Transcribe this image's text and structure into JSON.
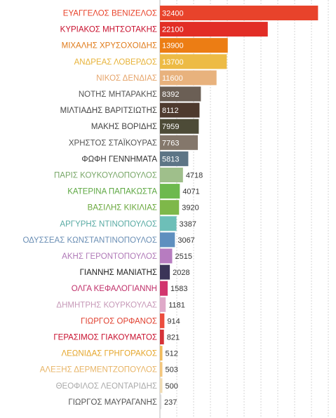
{
  "chart_data": {
    "type": "bar",
    "orientation": "horizontal",
    "title": "",
    "xlabel": "",
    "ylabel": "",
    "grid": true,
    "legend": "none",
    "xlim": [
      0,
      34500
    ],
    "categories": [
      "ΕΥΑΓΓΕΛΟΣ ΒΕΝΙΖΕΛΟΣ",
      "ΚΥΡΙΑΚΟΣ ΜΗΤΣΟΤΑΚΗΣ",
      "ΜΙΧΑΛΗΣ ΧΡΥΣΟΧΟΙΔΗΣ",
      "ΑΝΔΡΕΑΣ ΛΟΒΕΡΔΟΣ",
      "ΝΙΚΟΣ ΔΕΝΔΙΑΣ",
      "ΝΟΤΗΣ ΜΗΤΑΡΑΚΗΣ",
      "ΜΙΛΤΙΑΔΗΣ ΒΑΡΙΤΣΙΩΤΗΣ",
      "ΜΑΚΗΣ ΒΟΡΙΔΗΣ",
      "ΧΡΗΣΤΟΣ ΣΤΑΪΚΟΥΡΑΣ",
      "ΦΩΦΗ ΓΕΝΝΗΜΑΤΑ",
      "ΠΑΡΙΣ ΚΟΥΚΟΥΛΟΠΟΥΛΟΣ",
      "ΚΑΤΕΡΙΝΑ ΠΑΠΑΚΩΣΤΑ",
      "ΒΑΣΙΛΗΣ ΚΙΚΙΛΙΑΣ",
      "ΑΡΓΥΡΗΣ ΝΤΙΝΟΠΟΥΛΟΣ",
      "ΟΔΥΣΣΕΑΣ ΚΩΝΣΤΑΝΤΙΝΟΠΟΥΛΟΣ",
      "ΑΚΗΣ ΓΕΡΟΝΤΟΠΟΥΛΟΣ",
      "ΓΙΑΝΝΗΣ ΜΑΝΙΑΤΗΣ",
      "ΟΛΓΑ ΚΕΦΑΛΟΓΙΑΝΝΗ",
      "ΔΗΜΗΤΡΗΣ ΚΟΥΡΚΟΥΛΑΣ",
      "ΓΙΩΡΓΟΣ ΟΡΦΑΝΟΣ",
      "ΓΕΡΑΣΙΜΟΣ ΓΙΑΚΟΥΜΑΤΟΣ",
      "ΛΕΩΝΙΔΑΣ ΓΡΗΓΟΡΑΚΟΣ",
      "ΑΛΕΞΗΣ ΔΕΡΜΕΝΤΖΟΠΟΥΛΟΣ",
      "ΘΕΟΦΙΛΟΣ ΛΕΟΝΤΑΡΙΔΗΣ",
      "ΓΙΩΡΓΟΣ ΜΑΥΡΑΓΑΝΗΣ"
    ],
    "values": [
      32400,
      22100,
      13900,
      13700,
      11600,
      8392,
      8112,
      7959,
      7763,
      5813,
      4718,
      4071,
      3920,
      3387,
      3067,
      2515,
      2028,
      1583,
      1181,
      914,
      821,
      512,
      503,
      500,
      237
    ],
    "value_labels": [
      "32400",
      "22100",
      "13900",
      "13700",
      "11600",
      "8392",
      "8112",
      "7959",
      "7763",
      "5813",
      "4718",
      "4071",
      "3920",
      "3387",
      "3067",
      "2515",
      "2028",
      "1583",
      "1181",
      "914",
      "821",
      "512",
      "503",
      "500",
      "237"
    ],
    "colors": [
      "#e8432b",
      "#e22d26",
      "#ec7d14",
      "#edbb45",
      "#e8b27d",
      "#6b5f55",
      "#4e3a2e",
      "#4d4b37",
      "#84776b",
      "#5d7586",
      "#9fbf8b",
      "#6db94e",
      "#7eb849",
      "#6dbfb8",
      "#5e8fbf",
      "#b77cc0",
      "#3b3558",
      "#d2356e",
      "#dfa9c9",
      "#ec4d3e",
      "#d63237",
      "#f1bb5b",
      "#f4c77e",
      "#f0dcb4",
      "#d9d9d9"
    ],
    "label_colors": [
      "#e8432b",
      "#c8102e",
      "#e07b1a",
      "#e7b33a",
      "#e6a56b",
      "#555555",
      "#444444",
      "#444444",
      "#555555",
      "#333333",
      "#7aa86a",
      "#5ea843",
      "#6aa83d",
      "#58aaa3",
      "#6b8fb5",
      "#b07ab8",
      "#222222",
      "#c0306a",
      "#c79ab8",
      "#e04030",
      "#c8102e",
      "#e5a62c",
      "#e8b567",
      "#aaaaaa",
      "#555555"
    ]
  }
}
